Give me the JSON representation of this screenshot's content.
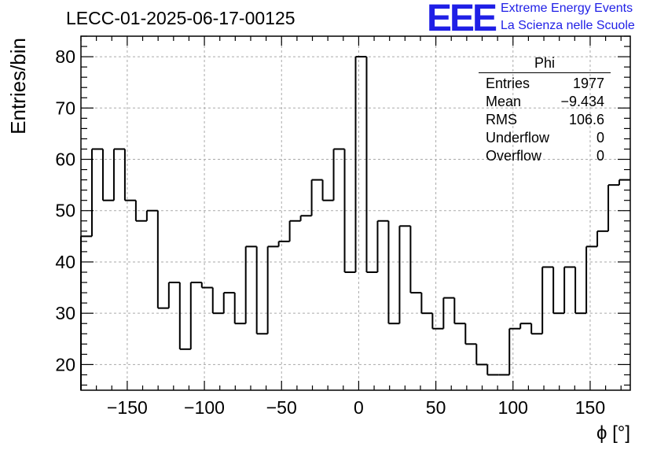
{
  "header": {
    "run_id": "LECC-01-2025-06-17-00125",
    "logo_text": "EEE",
    "logo_line1": "Extreme Energy Events",
    "logo_line2": "La Scienza nelle Scuole",
    "logo_color": "#1f1fe6"
  },
  "stats_box": {
    "title": "Phi",
    "rows": [
      {
        "label": "Entries",
        "value": "1977"
      },
      {
        "label": "Mean",
        "value": "−9.434"
      },
      {
        "label": "RMS",
        "value": "106.6"
      },
      {
        "label": "Underflow",
        "value": "0"
      },
      {
        "label": "Overflow",
        "value": "0"
      }
    ]
  },
  "chart_data": {
    "type": "bar",
    "style": "step-histogram",
    "ylabel": "Entries/bin",
    "xlabel": "ϕ [°]",
    "xlim": [
      -180,
      176
    ],
    "ylim": [
      15,
      84
    ],
    "bin_width": 7.12,
    "bin_edges_start": -180,
    "grid": true,
    "x_ticks": [
      -150,
      -100,
      -50,
      0,
      50,
      100,
      150
    ],
    "x_tick_labels": [
      "−150",
      "−100",
      "−50",
      "0",
      "50",
      "100",
      "150"
    ],
    "y_ticks": [
      20,
      30,
      40,
      50,
      60,
      70,
      80
    ],
    "y_tick_labels": [
      "20",
      "30",
      "40",
      "50",
      "60",
      "70",
      "80"
    ],
    "values": [
      45,
      62,
      52,
      62,
      52,
      48,
      50,
      31,
      36,
      23,
      36,
      35,
      30,
      34,
      28,
      43,
      26,
      43,
      44,
      48,
      49,
      56,
      52,
      62,
      38,
      80,
      38,
      48,
      28,
      47,
      34,
      30,
      27,
      33,
      28,
      24,
      20,
      18,
      18,
      27,
      28,
      26,
      39,
      30,
      39,
      30,
      43,
      46,
      55,
      56
    ]
  }
}
